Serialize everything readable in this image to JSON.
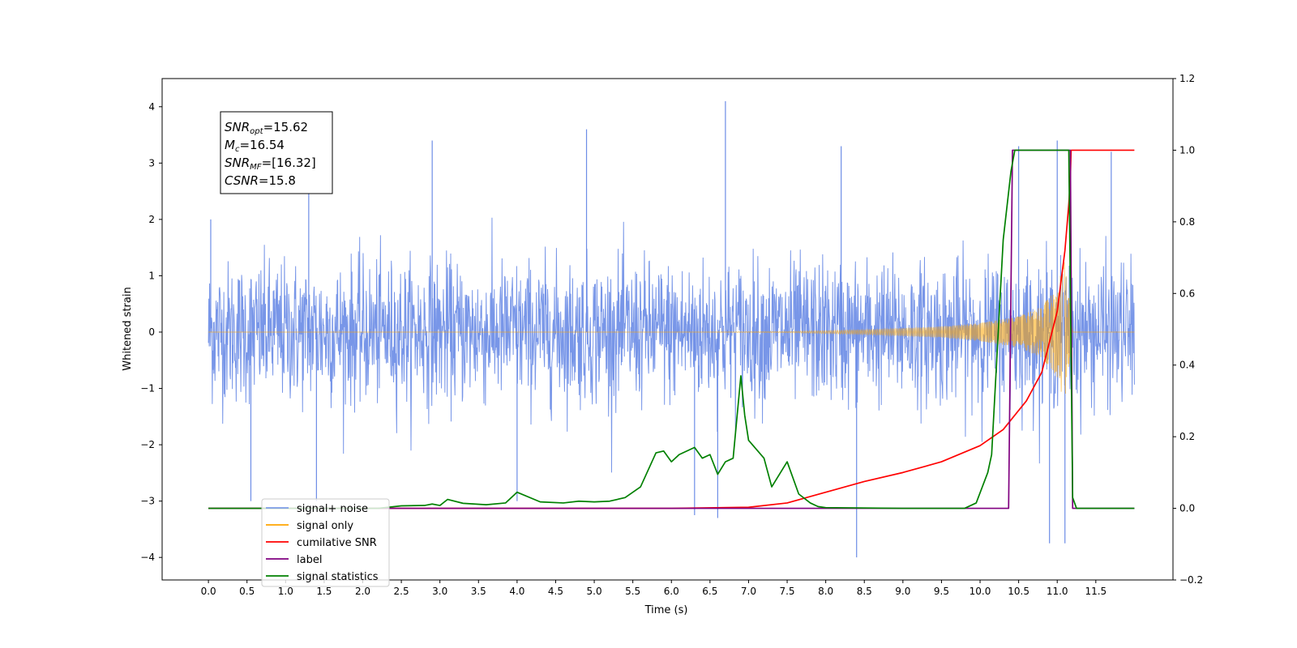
{
  "chart_data": {
    "type": "line",
    "xlabel": "Time (s)",
    "ylabel_left": "Whitened strain",
    "ylabel_right": "",
    "xlim": [
      -0.6,
      12.5
    ],
    "ylim_left": [
      -4.4,
      4.5
    ],
    "ylim_right": [
      -0.2,
      1.2
    ],
    "x_ticks": [
      0.0,
      0.5,
      1.0,
      1.5,
      2.0,
      2.5,
      3.0,
      3.5,
      4.0,
      4.5,
      5.0,
      5.5,
      6.0,
      6.5,
      7.0,
      7.5,
      8.0,
      8.5,
      9.0,
      9.5,
      10.0,
      10.5,
      11.0,
      11.5
    ],
    "x_tick_labels": [
      "0.0",
      "0.5",
      "1.0",
      "1.5",
      "2.0",
      "2.5",
      "3.0",
      "3.5",
      "4.0",
      "4.5",
      "5.0",
      "5.5",
      "6.0",
      "6.5",
      "7.0",
      "7.5",
      "8.0",
      "8.5",
      "9.0",
      "9.5",
      "10.0",
      "10.5",
      "11.0",
      "11.5"
    ],
    "y_left_ticks": [
      4,
      3,
      2,
      1,
      0,
      -1,
      -2,
      -3,
      -4
    ],
    "y_left_tick_labels": [
      "4",
      "3",
      "2",
      "1",
      "0",
      "−1",
      "−2",
      "−3",
      "−4"
    ],
    "y_right_ticks": [
      1.2,
      1.0,
      0.8,
      0.6,
      0.4,
      0.2,
      0.0,
      -0.2
    ],
    "y_right_tick_labels": [
      "1.2",
      "1.0",
      "0.8",
      "0.6",
      "0.4",
      "0.2",
      "0.0",
      "−0.2"
    ],
    "grid": false,
    "legend_position": "lower-left",
    "annotation": {
      "lines": [
        {
          "sym": "SNR",
          "sub": "opt",
          "value": "=15.62"
        },
        {
          "sym": "M",
          "sub": "c",
          "value": "=16.54"
        },
        {
          "sym": "SNR",
          "sub": "MF",
          "value": "=[16.32]"
        },
        {
          "sym": "CSNR",
          "sub": "",
          "value": "=15.8"
        }
      ]
    },
    "series": [
      {
        "name": "signal+ noise",
        "axis": "left",
        "color": "#6d8de6",
        "kind": "noise",
        "x_range": [
          0.0,
          12.0
        ],
        "typical_amplitude": 1.7,
        "peaks": [
          {
            "x": 0.03,
            "y": 2.0
          },
          {
            "x": 1.3,
            "y": 3.0
          },
          {
            "x": 2.9,
            "y": 3.4
          },
          {
            "x": 4.9,
            "y": 3.6
          },
          {
            "x": 6.7,
            "y": 4.1
          },
          {
            "x": 8.2,
            "y": 3.3
          },
          {
            "x": 10.5,
            "y": 3.3
          },
          {
            "x": 11.0,
            "y": 3.4
          },
          {
            "x": 11.7,
            "y": 3.2
          }
        ],
        "troughs": [
          {
            "x": 0.55,
            "y": -3.0
          },
          {
            "x": 1.4,
            "y": -3.0
          },
          {
            "x": 4.0,
            "y": -3.0
          },
          {
            "x": 6.3,
            "y": -3.25
          },
          {
            "x": 6.6,
            "y": -3.3
          },
          {
            "x": 8.4,
            "y": -4.0
          },
          {
            "x": 10.9,
            "y": -3.75
          },
          {
            "x": 11.1,
            "y": -3.75
          }
        ]
      },
      {
        "name": "signal only",
        "axis": "left",
        "color": "#ffa500",
        "kind": "chirp",
        "x": [
          0.0,
          2.0,
          4.0,
          6.0,
          7.5,
          8.5,
          9.5,
          10.0,
          10.5,
          10.8,
          11.0,
          11.1,
          11.2,
          12.0
        ],
        "envelope": [
          0.0,
          0.0,
          0.0,
          0.0,
          0.01,
          0.04,
          0.1,
          0.16,
          0.28,
          0.45,
          0.8,
          1.3,
          0.0,
          0.0
        ]
      },
      {
        "name": "cumilative SNR",
        "axis": "right",
        "color": "#ff0000",
        "x": [
          0.0,
          6.0,
          7.0,
          7.5,
          8.0,
          8.5,
          9.0,
          9.5,
          10.0,
          10.3,
          10.6,
          10.8,
          11.0,
          11.1,
          11.15,
          11.17,
          11.18,
          11.3,
          12.0
        ],
        "values": [
          0.0,
          0.0,
          0.003,
          0.015,
          0.045,
          0.075,
          0.1,
          0.13,
          0.175,
          0.22,
          0.3,
          0.38,
          0.55,
          0.72,
          0.85,
          0.92,
          1.0,
          1.0,
          1.0
        ]
      },
      {
        "name": "label",
        "axis": "right",
        "color": "#800080",
        "x": [
          0.0,
          10.37,
          10.42,
          11.17,
          11.2,
          12.0
        ],
        "values": [
          0.0,
          0.0,
          1.0,
          1.0,
          0.0,
          0.0
        ]
      },
      {
        "name": "signal statistics",
        "axis": "right",
        "color": "#008000",
        "x": [
          0.0,
          2.2,
          2.5,
          2.8,
          2.9,
          3.0,
          3.1,
          3.3,
          3.6,
          3.85,
          4.0,
          4.3,
          4.6,
          4.8,
          5.0,
          5.2,
          5.4,
          5.6,
          5.8,
          5.9,
          6.0,
          6.1,
          6.3,
          6.4,
          6.5,
          6.6,
          6.7,
          6.8,
          6.9,
          6.95,
          7.0,
          7.2,
          7.3,
          7.5,
          7.65,
          7.8,
          7.9,
          8.0,
          9.0,
          9.8,
          9.95,
          10.1,
          10.15,
          10.3,
          10.4,
          10.45,
          10.6,
          11.15,
          11.2,
          11.25,
          12.0
        ],
        "values": [
          0.0,
          0.0,
          0.007,
          0.008,
          0.012,
          0.008,
          0.025,
          0.014,
          0.01,
          0.015,
          0.045,
          0.018,
          0.015,
          0.02,
          0.018,
          0.02,
          0.03,
          0.06,
          0.155,
          0.16,
          0.13,
          0.15,
          0.17,
          0.14,
          0.15,
          0.095,
          0.13,
          0.14,
          0.37,
          0.26,
          0.19,
          0.14,
          0.06,
          0.13,
          0.04,
          0.015,
          0.005,
          0.002,
          0.0,
          0.0,
          0.015,
          0.1,
          0.15,
          0.75,
          0.94,
          1.0,
          1.0,
          1.0,
          0.03,
          0.0,
          0.0
        ]
      }
    ],
    "legend": {
      "entries": [
        {
          "label": "signal+ noise",
          "color": "#6d8de6"
        },
        {
          "label": "signal only",
          "color": "#ffa500"
        },
        {
          "label": "cumilative SNR",
          "color": "#ff0000"
        },
        {
          "label": "label",
          "color": "#800080"
        },
        {
          "label": "signal statistics",
          "color": "#008000"
        }
      ]
    }
  }
}
